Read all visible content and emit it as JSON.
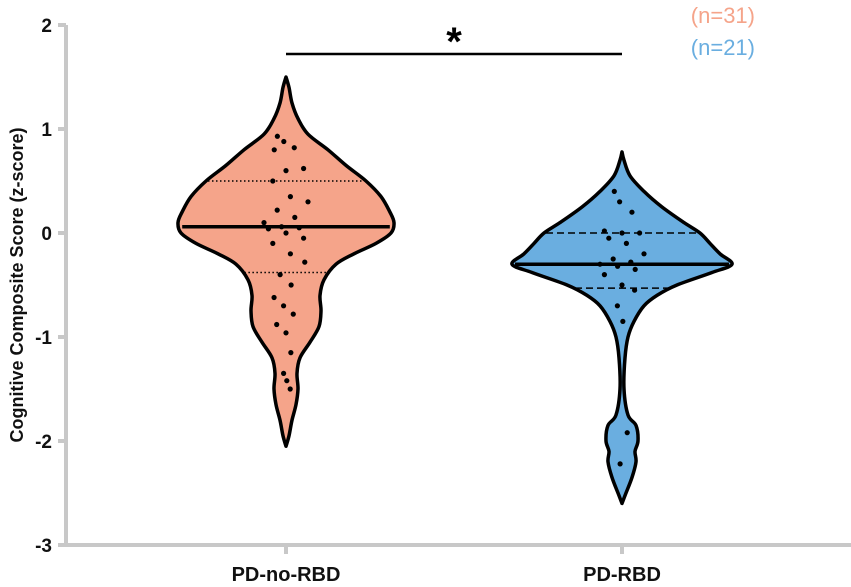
{
  "chart_data": {
    "type": "violin",
    "title": "",
    "ylabel": "Cognitive  Composite Score (z-score)",
    "xlabel": "",
    "ylim": [
      -3,
      2
    ],
    "yticks": [
      2,
      1,
      0,
      -1,
      -2,
      -3
    ],
    "categories": [
      "PD-no-RBD",
      "PD-RBD"
    ],
    "grid": false,
    "significance": {
      "between": [
        "PD-no-RBD",
        "PD-RBD"
      ],
      "label": "*"
    },
    "series": [
      {
        "category": "PD-no-RBD",
        "n_label": "(n=31)",
        "color": "#f5a48a",
        "median": 0.06,
        "q1": -0.38,
        "q3": 0.5,
        "quartile_style": "dotted",
        "values": [
          0.93,
          0.88,
          0.82,
          0.8,
          0.6,
          0.62,
          0.5,
          0.35,
          0.3,
          0.22,
          0.15,
          0.1,
          0.06,
          0.05,
          0.04,
          0.0,
          -0.05,
          -0.1,
          -0.2,
          -0.28,
          -0.4,
          -0.5,
          -0.62,
          -0.7,
          -0.78,
          -0.88,
          -0.96,
          -1.15,
          -1.35,
          -1.42,
          -1.5
        ]
      },
      {
        "category": "PD-RBD",
        "n_label": "(n=21)",
        "color": "#6aaee0",
        "median": -0.3,
        "q1": -0.53,
        "q3": 0.0,
        "quartile_style": "dashed",
        "values": [
          0.4,
          0.3,
          0.2,
          0.02,
          0.0,
          0.0,
          -0.05,
          -0.1,
          -0.2,
          -0.25,
          -0.28,
          -0.3,
          -0.32,
          -0.35,
          -0.4,
          -0.5,
          -0.55,
          -0.7,
          -0.85,
          -1.92,
          -2.22
        ]
      }
    ]
  }
}
